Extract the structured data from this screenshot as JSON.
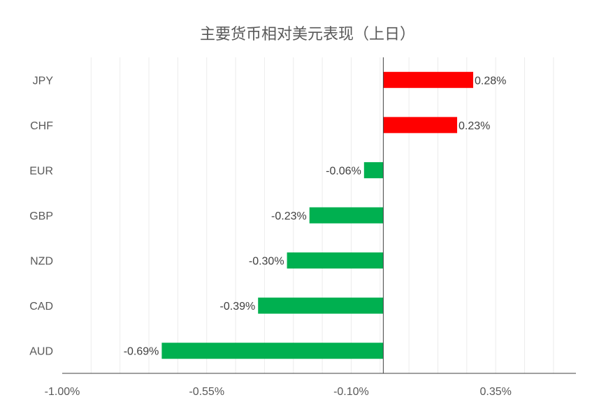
{
  "chart_data": {
    "type": "bar",
    "orientation": "horizontal",
    "title": "主要货币相对美元表现（上日）",
    "categories": [
      "JPY",
      "CHF",
      "EUR",
      "GBP",
      "NZD",
      "CAD",
      "AUD"
    ],
    "values": [
      0.28,
      0.23,
      -0.06,
      -0.23,
      -0.3,
      -0.39,
      -0.69
    ],
    "data_labels": [
      "0.28%",
      "0.23%",
      "-0.06%",
      "-0.23%",
      "-0.30%",
      "-0.39%",
      "-0.69%"
    ],
    "x_ticks": [
      -1.0,
      -0.55,
      -0.1,
      0.35
    ],
    "x_tick_labels": [
      "-1.00%",
      "-0.55%",
      "-0.10%",
      "0.35%"
    ],
    "xlim": [
      -1.0,
      0.6
    ],
    "positive_color": "#ff0000",
    "negative_color": "#00b050",
    "grid": "vertical minor lines",
    "legend": "none"
  }
}
